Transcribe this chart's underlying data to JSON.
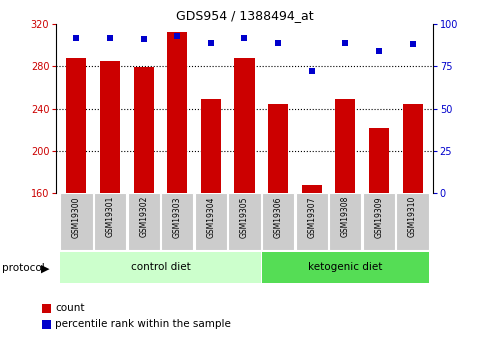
{
  "title": "GDS954 / 1388494_at",
  "samples": [
    "GSM19300",
    "GSM19301",
    "GSM19302",
    "GSM19303",
    "GSM19304",
    "GSM19305",
    "GSM19306",
    "GSM19307",
    "GSM19308",
    "GSM19309",
    "GSM19310"
  ],
  "counts": [
    288,
    285,
    279,
    313,
    249,
    288,
    244,
    168,
    249,
    222,
    244
  ],
  "percentile_ranks": [
    92,
    92,
    91,
    93,
    89,
    92,
    89,
    72,
    89,
    84,
    88
  ],
  "ylim_left": [
    160,
    320
  ],
  "ylim_right": [
    0,
    100
  ],
  "yticks_left": [
    160,
    200,
    240,
    280,
    320
  ],
  "yticks_right": [
    0,
    25,
    50,
    75,
    100
  ],
  "grid_yticks": [
    200,
    240,
    280
  ],
  "bar_color": "#cc0000",
  "dot_color": "#0000cc",
  "control_diet_indices": [
    0,
    1,
    2,
    3,
    4,
    5
  ],
  "ketogenic_diet_indices": [
    6,
    7,
    8,
    9,
    10
  ],
  "control_diet_label": "control diet",
  "ketogenic_diet_label": "ketogenic diet",
  "protocol_label": "protocol",
  "legend_count_label": "count",
  "legend_percentile_label": "percentile rank within the sample",
  "left_tick_color": "#cc0000",
  "right_tick_color": "#0000cc",
  "control_bg": "#ccffcc",
  "ketogenic_bg": "#55dd55",
  "label_bg": "#cccccc",
  "title_fontsize": 9,
  "axis_fontsize": 7,
  "label_fontsize": 5.5,
  "protocol_fontsize": 7.5,
  "legend_fontsize": 7.5
}
